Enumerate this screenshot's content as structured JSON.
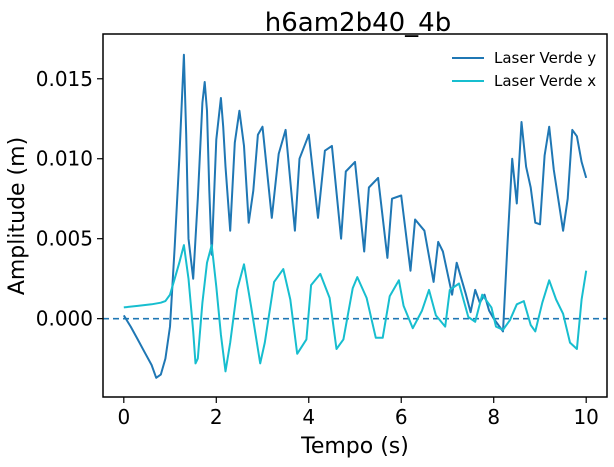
{
  "chart_data": {
    "type": "line",
    "title": "h6am2b40_4b",
    "xlabel": "Tempo (s)",
    "ylabel": "Amplitude (m)",
    "xlim": [
      -0.45,
      10.45
    ],
    "ylim": [
      -0.0049,
      0.0178
    ],
    "xticks": [
      0,
      2,
      4,
      6,
      8,
      10
    ],
    "xtick_labels": [
      "0",
      "2",
      "4",
      "6",
      "8",
      "10"
    ],
    "yticks": [
      0.0,
      0.005,
      0.01,
      0.015
    ],
    "ytick_labels": [
      "0.000",
      "0.005",
      "0.010",
      "0.015"
    ],
    "grid": false,
    "legend_position": "top-right",
    "reference_line": {
      "y": 0.0,
      "style": "dashed",
      "color": "#1f77b4"
    },
    "series": [
      {
        "name": "Laser Verde y",
        "color": "#1f77b4",
        "x": [
          0.0,
          0.15,
          0.3,
          0.45,
          0.6,
          0.7,
          0.8,
          0.9,
          1.0,
          1.1,
          1.2,
          1.3,
          1.35,
          1.4,
          1.5,
          1.6,
          1.7,
          1.75,
          1.8,
          1.85,
          1.9,
          2.0,
          2.1,
          2.15,
          2.2,
          2.3,
          2.4,
          2.5,
          2.6,
          2.7,
          2.8,
          2.9,
          3.0,
          3.2,
          3.35,
          3.5,
          3.7,
          3.8,
          4.0,
          4.2,
          4.35,
          4.5,
          4.7,
          4.8,
          5.0,
          5.2,
          5.3,
          5.5,
          5.7,
          5.8,
          6.0,
          6.2,
          6.3,
          6.5,
          6.7,
          6.8,
          6.9,
          7.1,
          7.2,
          7.4,
          7.5,
          7.6,
          7.7,
          7.8,
          7.9,
          8.0,
          8.2,
          8.3,
          8.4,
          8.5,
          8.6,
          8.7,
          8.8,
          8.9,
          9.0,
          9.1,
          9.2,
          9.3,
          9.5,
          9.6,
          9.7,
          9.8,
          9.9,
          10.0
        ],
        "y": [
          0.0002,
          -0.0005,
          -0.0013,
          -0.0021,
          -0.0029,
          -0.0037,
          -0.0035,
          -0.0025,
          -0.0005,
          0.0045,
          0.01,
          0.0165,
          0.0115,
          0.005,
          0.0025,
          0.0075,
          0.0135,
          0.0148,
          0.013,
          0.008,
          0.004,
          0.0112,
          0.0138,
          0.012,
          0.0095,
          0.0055,
          0.011,
          0.013,
          0.0108,
          0.006,
          0.008,
          0.0115,
          0.012,
          0.0063,
          0.0103,
          0.0118,
          0.0055,
          0.01,
          0.0115,
          0.0063,
          0.0105,
          0.0108,
          0.005,
          0.0092,
          0.0098,
          0.0042,
          0.0082,
          0.0088,
          0.0038,
          0.0075,
          0.0077,
          0.003,
          0.0062,
          0.0055,
          0.0023,
          0.0048,
          0.0042,
          0.0015,
          0.0035,
          0.0015,
          0.0004,
          0.0018,
          0.001,
          0.0015,
          0.0005,
          0.0,
          -0.0008,
          0.0048,
          0.01,
          0.0072,
          0.0123,
          0.0095,
          0.0082,
          0.006,
          0.0059,
          0.0102,
          0.012,
          0.0093,
          0.0055,
          0.0075,
          0.0118,
          0.0114,
          0.0098,
          0.0088
        ]
      },
      {
        "name": "Laser Verde x",
        "color": "#17becf",
        "x": [
          0.0,
          0.3,
          0.6,
          0.8,
          0.9,
          1.0,
          1.1,
          1.2,
          1.3,
          1.4,
          1.5,
          1.55,
          1.6,
          1.7,
          1.8,
          1.9,
          2.0,
          2.1,
          2.2,
          2.3,
          2.45,
          2.6,
          2.75,
          2.95,
          3.05,
          3.25,
          3.45,
          3.6,
          3.75,
          3.95,
          4.05,
          4.25,
          4.45,
          4.6,
          4.75,
          4.95,
          5.05,
          5.25,
          5.45,
          5.6,
          5.75,
          5.95,
          6.05,
          6.25,
          6.45,
          6.6,
          6.75,
          6.95,
          7.05,
          7.25,
          7.45,
          7.6,
          7.75,
          7.95,
          8.05,
          8.2,
          8.35,
          8.5,
          8.65,
          8.8,
          8.9,
          9.05,
          9.2,
          9.35,
          9.5,
          9.65,
          9.8,
          9.9,
          10.0
        ],
        "y": [
          0.0007,
          0.0008,
          0.0009,
          0.001,
          0.0011,
          0.0015,
          0.0025,
          0.0035,
          0.0046,
          0.0025,
          -0.0008,
          -0.0028,
          -0.0025,
          0.001,
          0.0035,
          0.0046,
          0.002,
          -0.001,
          -0.0033,
          -0.0015,
          0.0018,
          0.0034,
          0.0008,
          -0.0028,
          -0.0015,
          0.0023,
          0.0031,
          0.0012,
          -0.0022,
          -0.0013,
          0.0021,
          0.0028,
          0.0013,
          -0.0019,
          -0.0013,
          0.0019,
          0.0026,
          0.0013,
          -0.0012,
          -0.0012,
          0.0014,
          0.0024,
          0.0008,
          -0.0006,
          0.0005,
          0.0018,
          0.0002,
          -0.0005,
          0.0018,
          0.0022,
          0.0001,
          -0.0002,
          0.0015,
          0.0007,
          -0.0005,
          -0.0007,
          -0.0001,
          0.0009,
          0.0011,
          -0.0004,
          -0.0008,
          0.001,
          0.0024,
          0.0012,
          0.0003,
          -0.0015,
          -0.0019,
          0.0012,
          0.003
        ]
      }
    ]
  }
}
